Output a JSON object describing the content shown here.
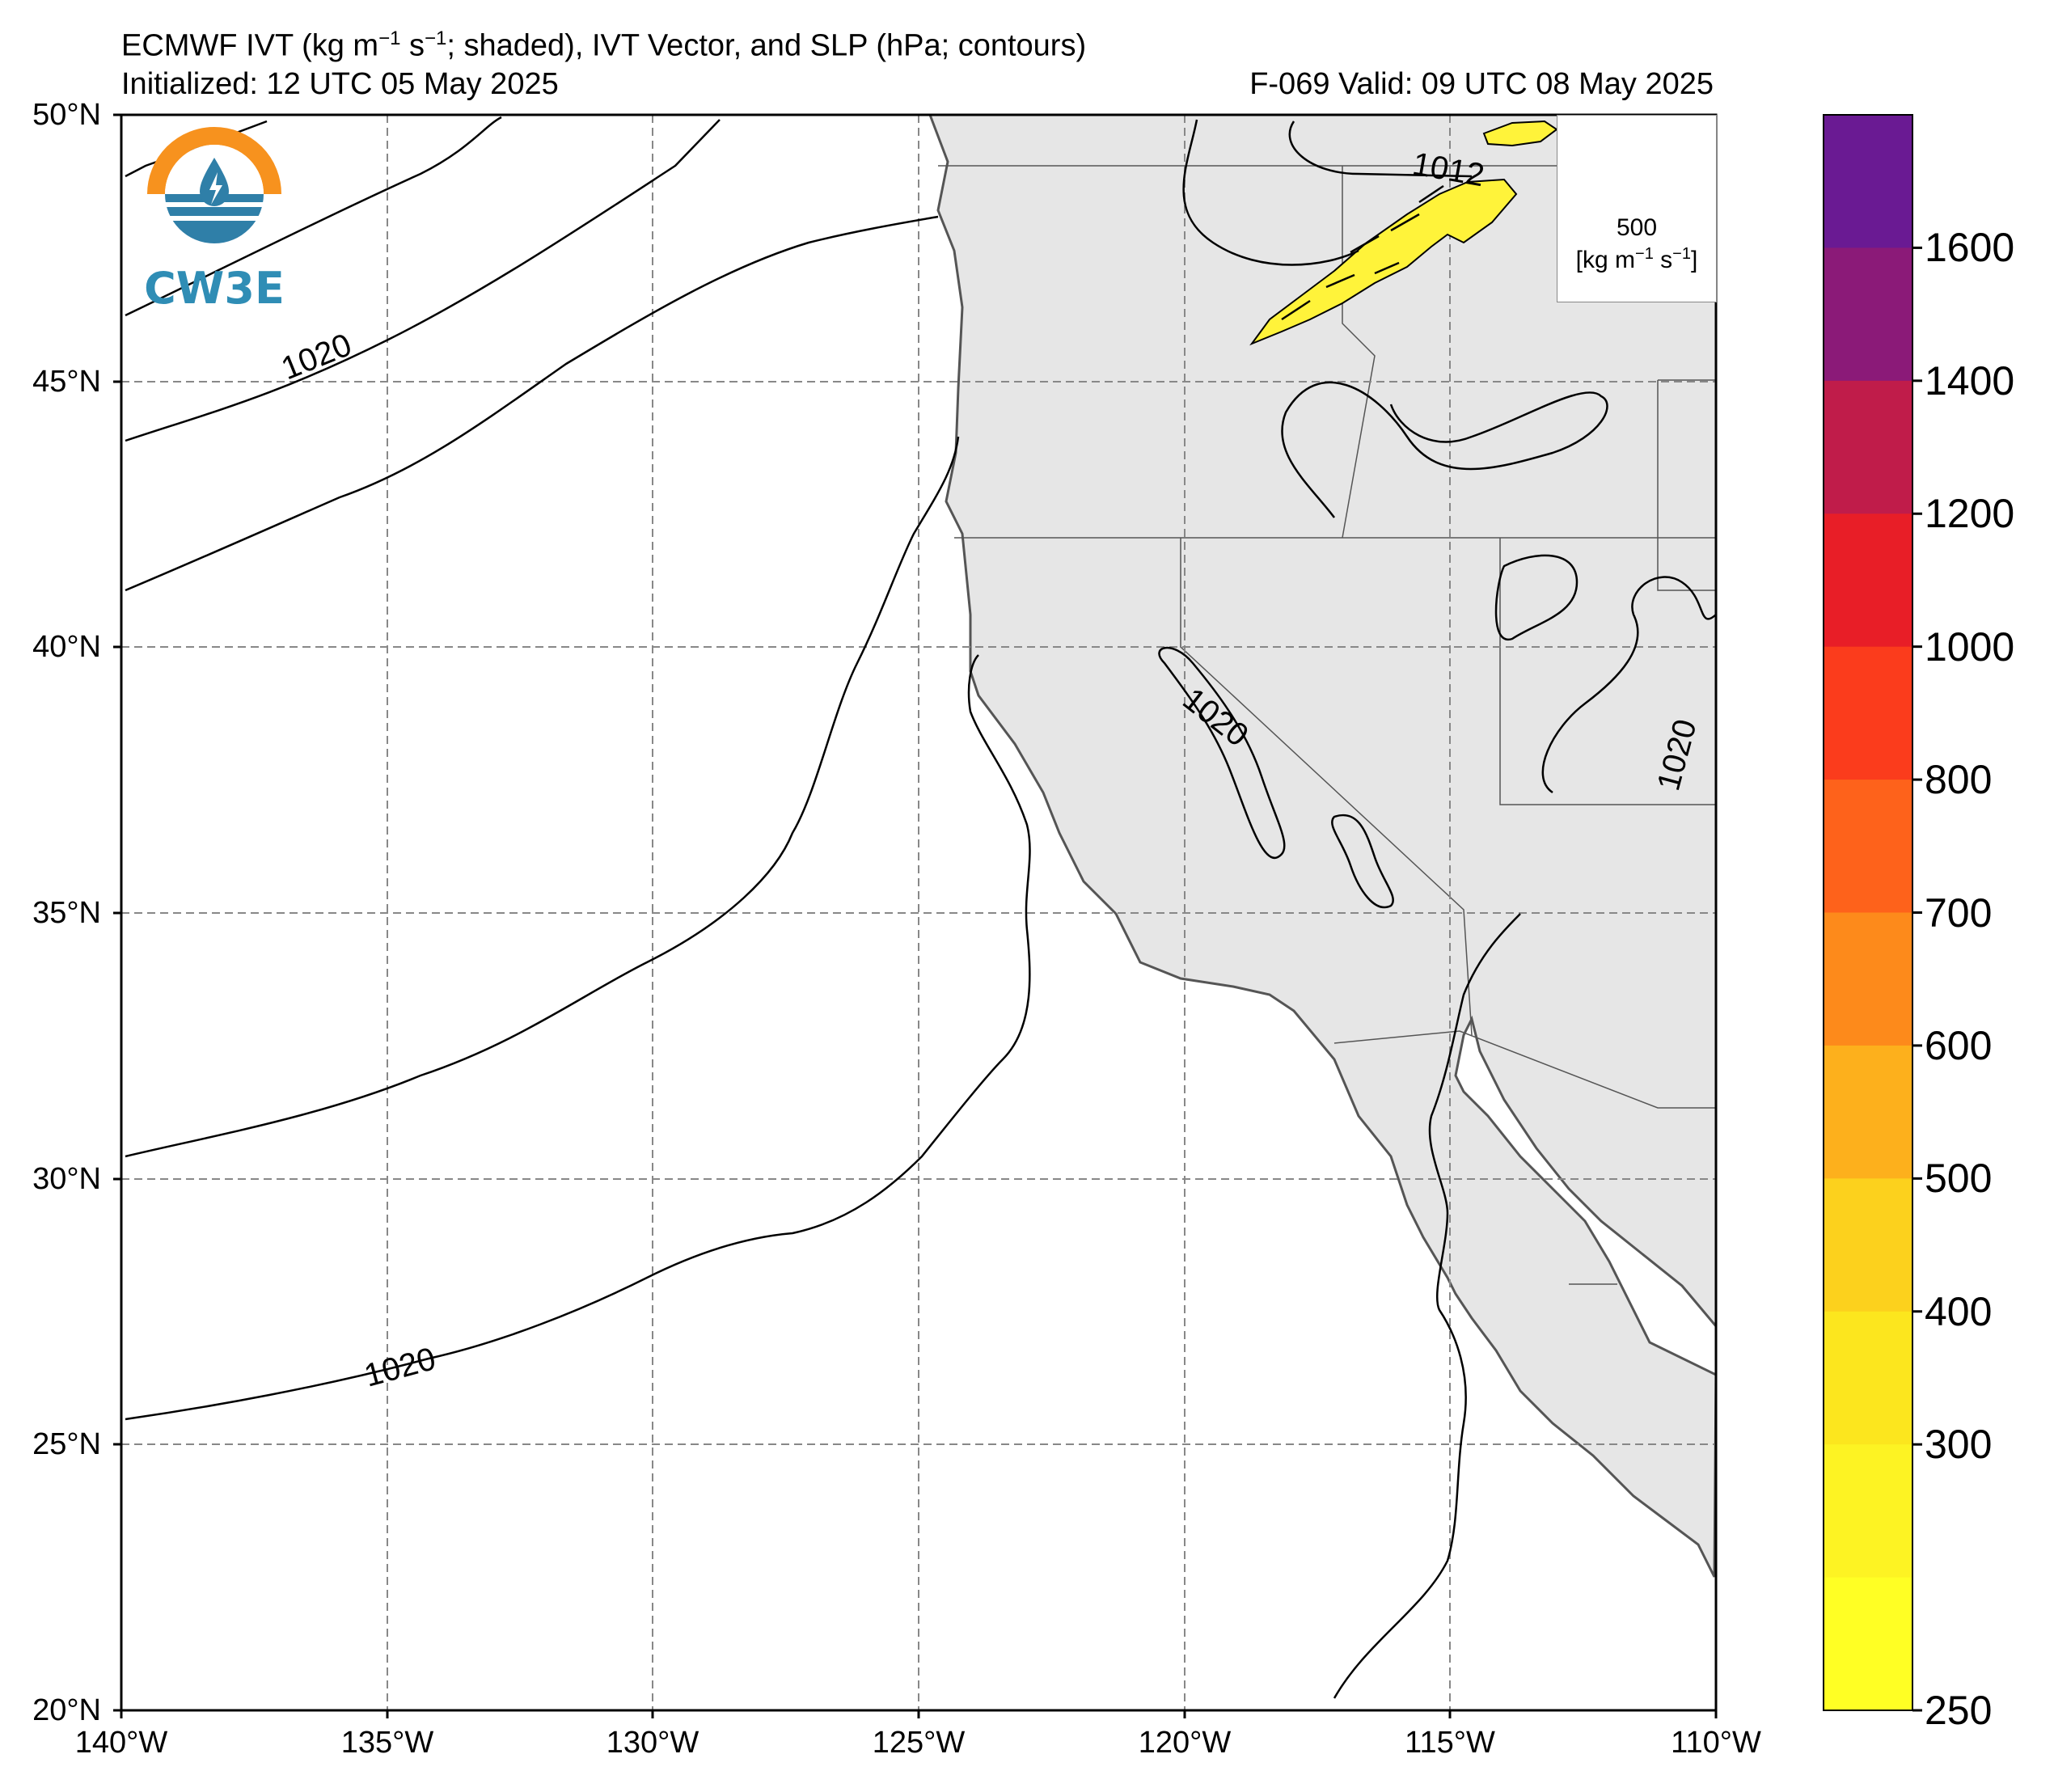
{
  "header": {
    "title_prefix": "ECMWF IVT (kg m",
    "sup1": "−1",
    "mid": " s",
    "sup2": "−1",
    "title_suffix": "; shaded), IVT Vector, and SLP (hPa; contours)",
    "initialized": "Initialized: 12 UTC 05 May 2025",
    "valid": "F-069  Valid: 09 UTC 08 May 2025"
  },
  "axes": {
    "lat_labels": [
      "50°N",
      "45°N",
      "40°N",
      "35°N",
      "30°N",
      "25°N",
      "20°N"
    ],
    "lon_labels": [
      "140°W",
      "135°W",
      "130°W",
      "125°W",
      "120°W",
      "115°W",
      "110°W"
    ],
    "lat_range": [
      20,
      50
    ],
    "lon_range": [
      -140,
      -110
    ]
  },
  "contour_labels": [
    "1020",
    "1020",
    "1020",
    "1020",
    "1012"
  ],
  "vector_reference": {
    "value": "500",
    "unit_prefix": "[kg m",
    "sup1": "−1",
    "mid": " s",
    "sup2": "−1",
    "unit_suffix": "]"
  },
  "colorbar": {
    "ticks": [
      "1600",
      "1400",
      "1200",
      "1000",
      "800",
      "700",
      "600",
      "500",
      "400",
      "300",
      "250"
    ],
    "colors": [
      "#6a1a93",
      "#8b1a78",
      "#c01c4a",
      "#e81e27",
      "#fb3c1c",
      "#fe621b",
      "#fd8a1b",
      "#fdb01c",
      "#fcd11d",
      "#fce61e",
      "#fdf323",
      "#ffff24"
    ]
  },
  "logo": {
    "text": "CW3E"
  },
  "colors": {
    "land": "#e6e6e6",
    "ivt_shade": "#fff33a",
    "grid": "#888888"
  }
}
